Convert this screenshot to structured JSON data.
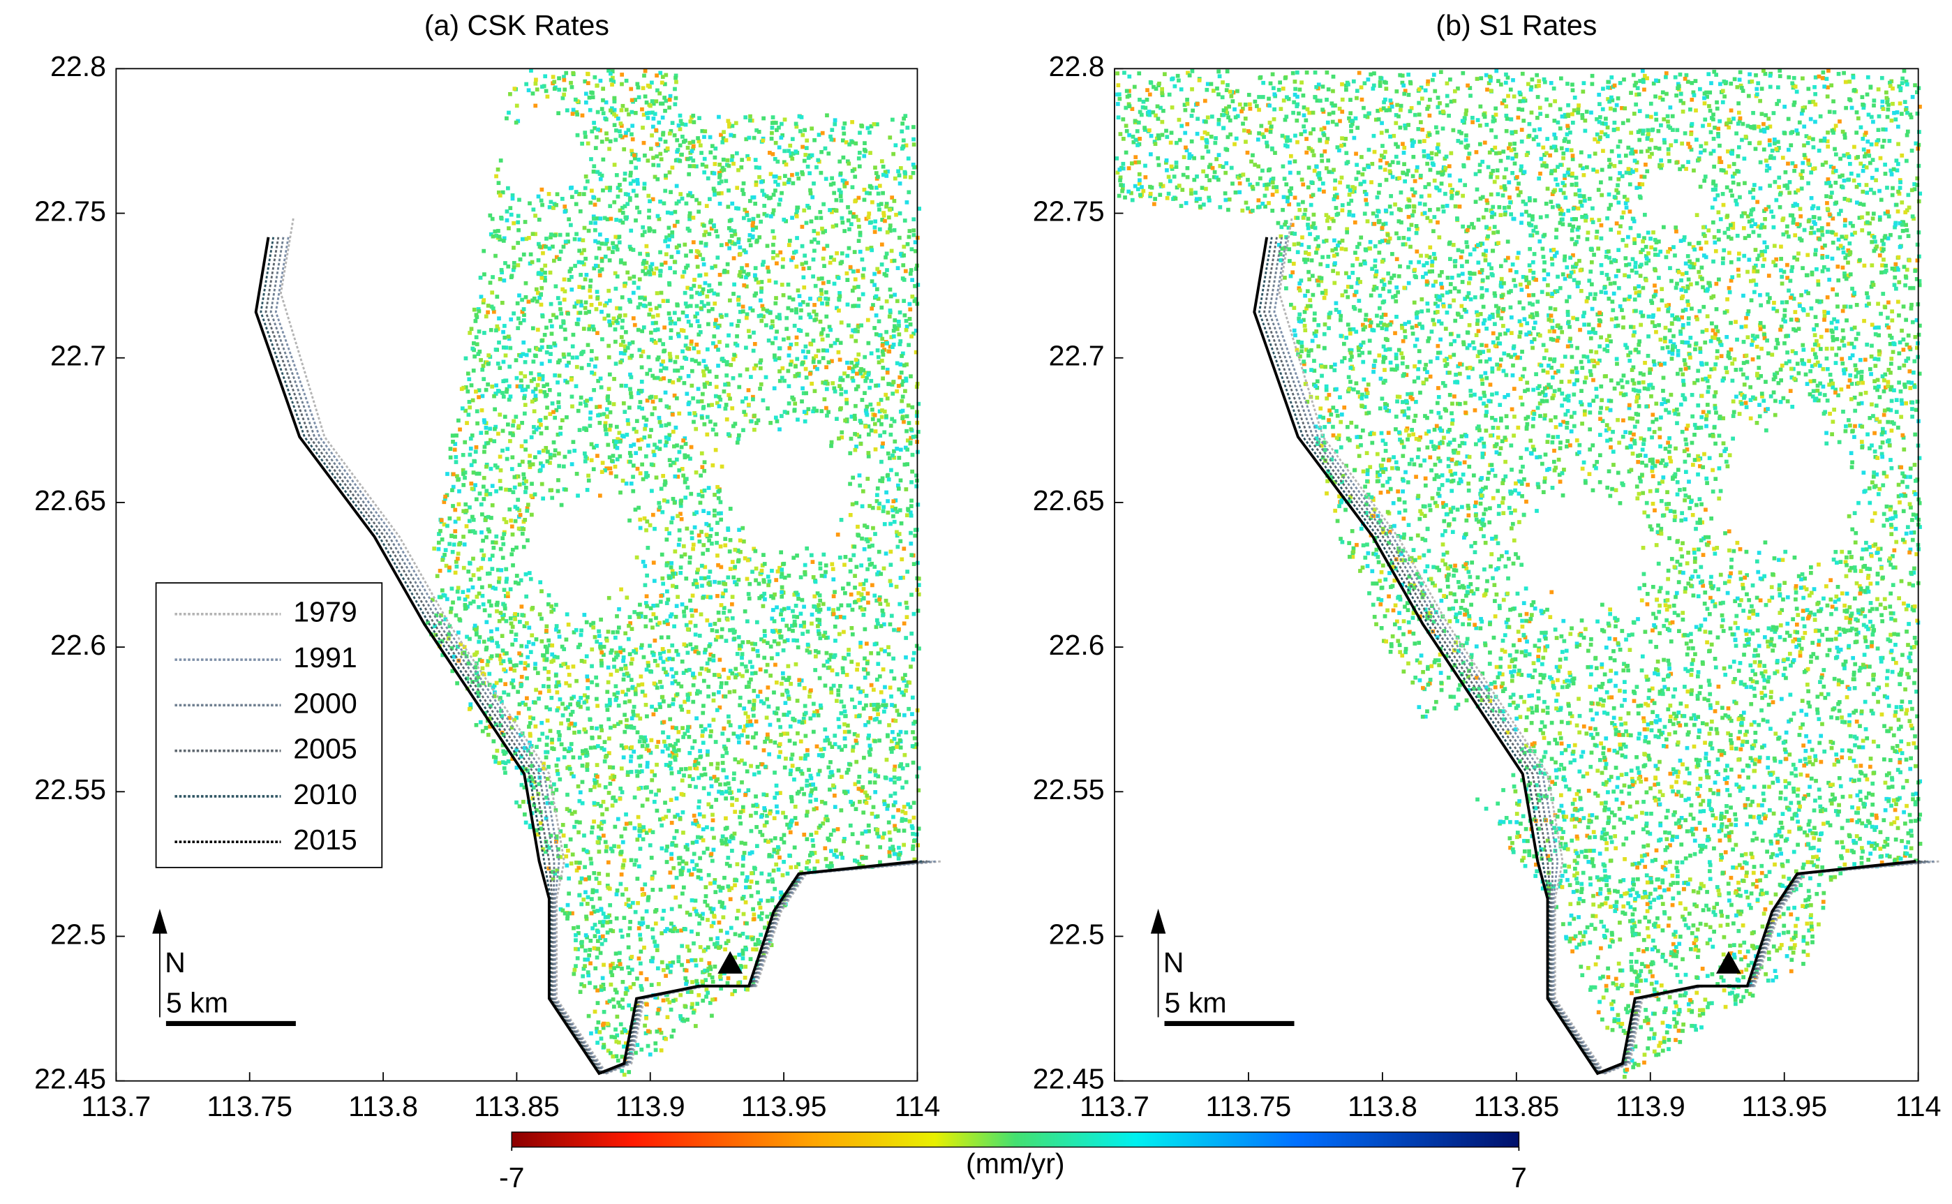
{
  "chart_data": [
    {
      "type": "map",
      "title": "(a) CSK Rates",
      "xlim": [
        113.7,
        114
      ],
      "ylim": [
        22.45,
        22.8
      ],
      "xticks": [
        113.7,
        113.75,
        113.8,
        113.85,
        113.9,
        113.95,
        114
      ],
      "yticks": [
        22.45,
        22.5,
        22.55,
        22.6,
        22.65,
        22.7,
        22.75,
        22.8
      ],
      "series": [
        {
          "name": "1979",
          "color": "#b4b4b4"
        },
        {
          "name": "1991",
          "color": "#7d8fa8"
        },
        {
          "name": "2000",
          "color": "#6f7f90"
        },
        {
          "name": "2005",
          "color": "#5e666e"
        },
        {
          "name": "2010",
          "color": "#2f5563"
        },
        {
          "name": "2015",
          "color": "#000000"
        }
      ],
      "legend": true,
      "north_label": "N",
      "scale_label": "5 km"
    },
    {
      "type": "map",
      "title": "(b) S1 Rates",
      "xlim": [
        113.7,
        114
      ],
      "ylim": [
        22.45,
        22.8
      ],
      "xticks": [
        113.7,
        113.75,
        113.8,
        113.85,
        113.9,
        113.95,
        114
      ],
      "yticks": [
        22.45,
        22.5,
        22.55,
        22.6,
        22.65,
        22.7,
        22.75,
        22.8
      ],
      "legend": false,
      "north_label": "N",
      "scale_label": "5 km"
    }
  ],
  "colorbar": {
    "label": "(mm/yr)",
    "lim": [
      -7,
      7
    ],
    "ticks": [
      -7,
      7
    ]
  }
}
